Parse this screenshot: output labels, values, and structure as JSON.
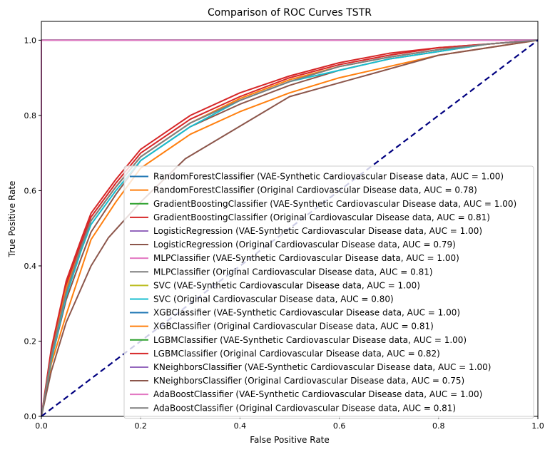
{
  "chart_data": {
    "type": "line",
    "title": "Comparison of ROC Curves TSTR",
    "xlabel": "False Positive Rate",
    "ylabel": "True Positive Rate",
    "xlim": [
      0,
      1
    ],
    "ylim": [
      0,
      1.05
    ],
    "xticks": [
      "0.0",
      "0.2",
      "0.4",
      "0.6",
      "0.8",
      "1.0"
    ],
    "yticks": [
      "0.0",
      "0.2",
      "0.4",
      "0.6",
      "0.8",
      "1.0"
    ],
    "grid": false,
    "legend_position": "lower-right",
    "chance_line": {
      "x": [
        0,
        1
      ],
      "y": [
        0,
        1
      ],
      "color": "#000080",
      "style": "dashed"
    },
    "series": [
      {
        "name": "RandomForestClassifier (VAE-Synthetic Cardiovascular Disease data, AUC = 1.00)",
        "color": "#1f77b4",
        "x": [
          0,
          0,
          1
        ],
        "y": [
          0,
          1,
          1
        ]
      },
      {
        "name": "RandomForestClassifier (Original Cardiovascular Disease data, AUC = 0.78)",
        "color": "#ff7f0e",
        "x": [
          0,
          0.02,
          0.05,
          0.08,
          0.1,
          0.15,
          0.2,
          0.3,
          0.4,
          0.5,
          0.6,
          0.7,
          0.8,
          0.9,
          1.0
        ],
        "y": [
          0,
          0.14,
          0.27,
          0.39,
          0.47,
          0.57,
          0.66,
          0.75,
          0.81,
          0.86,
          0.9,
          0.93,
          0.96,
          0.98,
          1.0
        ]
      },
      {
        "name": "GradientBoostingClassifier (VAE-Synthetic Cardiovascular Disease data, AUC = 1.00)",
        "color": "#2ca02c",
        "x": [
          0,
          0,
          1
        ],
        "y": [
          0,
          1,
          1
        ]
      },
      {
        "name": "GradientBoostingClassifier (Original Cardiovascular Disease data, AUC = 0.81)",
        "color": "#d62728",
        "x": [
          0,
          0.02,
          0.05,
          0.08,
          0.1,
          0.15,
          0.2,
          0.3,
          0.4,
          0.5,
          0.6,
          0.7,
          0.8,
          0.9,
          1.0
        ],
        "y": [
          0,
          0.17,
          0.35,
          0.46,
          0.53,
          0.62,
          0.7,
          0.79,
          0.85,
          0.9,
          0.935,
          0.96,
          0.98,
          0.99,
          1.0
        ]
      },
      {
        "name": "LogisticRegression (VAE-Synthetic Cardiovascular Disease data, AUC = 1.00)",
        "color": "#9467bd",
        "x": [
          0,
          0,
          1
        ],
        "y": [
          0,
          1,
          1
        ]
      },
      {
        "name": "LogisticRegression (Original Cardiovascular Disease data, AUC = 0.79)",
        "color": "#8c564b",
        "x": [
          0,
          0.02,
          0.05,
          0.08,
          0.1,
          0.15,
          0.2,
          0.3,
          0.4,
          0.5,
          0.6,
          0.7,
          0.8,
          0.9,
          1.0
        ],
        "y": [
          0,
          0.15,
          0.31,
          0.42,
          0.49,
          0.59,
          0.68,
          0.77,
          0.83,
          0.88,
          0.92,
          0.95,
          0.97,
          0.99,
          1.0
        ]
      },
      {
        "name": "MLPClassifier (VAE-Synthetic Cardiovascular Disease data, AUC = 1.00)",
        "color": "#e377c2",
        "x": [
          0,
          0,
          1
        ],
        "y": [
          0,
          1,
          1
        ]
      },
      {
        "name": "MLPClassifier (Original Cardiovascular Disease data, AUC = 0.81)",
        "color": "#7f7f7f",
        "x": [
          0,
          0.02,
          0.05,
          0.08,
          0.1,
          0.15,
          0.2,
          0.3,
          0.4,
          0.5,
          0.6,
          0.7,
          0.8,
          0.9,
          1.0
        ],
        "y": [
          0,
          0.16,
          0.34,
          0.45,
          0.52,
          0.61,
          0.69,
          0.78,
          0.84,
          0.89,
          0.93,
          0.955,
          0.975,
          0.99,
          1.0
        ]
      },
      {
        "name": "SVC (VAE-Synthetic Cardiovascular Disease data, AUC = 1.00)",
        "color": "#bcbd22",
        "x": [
          0,
          0,
          1
        ],
        "y": [
          0,
          1,
          1
        ]
      },
      {
        "name": "SVC (Original Cardiovascular Disease data, AUC = 0.80)",
        "color": "#17becf",
        "x": [
          0,
          0.02,
          0.05,
          0.08,
          0.1,
          0.15,
          0.2,
          0.3,
          0.4,
          0.5,
          0.6,
          0.7,
          0.8,
          0.9,
          1.0
        ],
        "y": [
          0,
          0.15,
          0.32,
          0.44,
          0.51,
          0.6,
          0.68,
          0.77,
          0.84,
          0.89,
          0.92,
          0.95,
          0.97,
          0.99,
          1.0
        ]
      },
      {
        "name": "XGBClassifier (VAE-Synthetic Cardiovascular Disease data, AUC = 1.00)",
        "color": "#1f77b4",
        "x": [
          0,
          0,
          1
        ],
        "y": [
          0,
          1,
          1
        ]
      },
      {
        "name": "XGBClassifier (Original Cardiovascular Disease data, AUC = 0.81)",
        "color": "#ff7f0e",
        "x": [
          0,
          0.02,
          0.05,
          0.08,
          0.1,
          0.15,
          0.2,
          0.3,
          0.4,
          0.5,
          0.6,
          0.7,
          0.8,
          0.9,
          1.0
        ],
        "y": [
          0,
          0.16,
          0.34,
          0.45,
          0.52,
          0.61,
          0.69,
          0.78,
          0.845,
          0.895,
          0.93,
          0.955,
          0.975,
          0.99,
          1.0
        ]
      },
      {
        "name": "LGBMClassifier (VAE-Synthetic Cardiovascular Disease data, AUC = 1.00)",
        "color": "#2ca02c",
        "x": [
          0,
          0,
          1
        ],
        "y": [
          0,
          1,
          1
        ]
      },
      {
        "name": "LGBMClassifier (Original Cardiovascular Disease data, AUC = 0.82)",
        "color": "#d62728",
        "x": [
          0,
          0.02,
          0.05,
          0.08,
          0.1,
          0.15,
          0.2,
          0.3,
          0.4,
          0.5,
          0.6,
          0.7,
          0.8,
          0.9,
          1.0
        ],
        "y": [
          0,
          0.18,
          0.36,
          0.47,
          0.54,
          0.63,
          0.71,
          0.8,
          0.86,
          0.905,
          0.94,
          0.965,
          0.98,
          0.99,
          1.0
        ]
      },
      {
        "name": "KNeighborsClassifier (VAE-Synthetic Cardiovascular Disease data, AUC = 1.00)",
        "color": "#9467bd",
        "x": [
          0,
          0,
          1
        ],
        "y": [
          0,
          1,
          1
        ]
      },
      {
        "name": "KNeighborsClassifier (Original Cardiovascular Disease data, AUC = 0.75)",
        "color": "#8c564b",
        "x": [
          0,
          0.02,
          0.05,
          0.1,
          0.135,
          0.2,
          0.29,
          0.5,
          0.8,
          1.0
        ],
        "y": [
          0,
          0.12,
          0.25,
          0.4,
          0.475,
          0.57,
          0.685,
          0.85,
          0.96,
          1.0
        ]
      },
      {
        "name": "AdaBoostClassifier (VAE-Synthetic Cardiovascular Disease data, AUC = 1.00)",
        "color": "#e377c2",
        "x": [
          0,
          0,
          1
        ],
        "y": [
          0,
          1,
          1
        ]
      },
      {
        "name": "AdaBoostClassifier (Original Cardiovascular Disease data, AUC = 0.81)",
        "color": "#7f7f7f",
        "x": [
          0,
          0.02,
          0.05,
          0.08,
          0.1,
          0.15,
          0.2,
          0.3,
          0.4,
          0.5,
          0.6,
          0.7,
          0.8,
          0.9,
          1.0
        ],
        "y": [
          0,
          0.16,
          0.33,
          0.45,
          0.52,
          0.61,
          0.69,
          0.78,
          0.84,
          0.89,
          0.93,
          0.955,
          0.975,
          0.99,
          1.0
        ]
      }
    ]
  }
}
